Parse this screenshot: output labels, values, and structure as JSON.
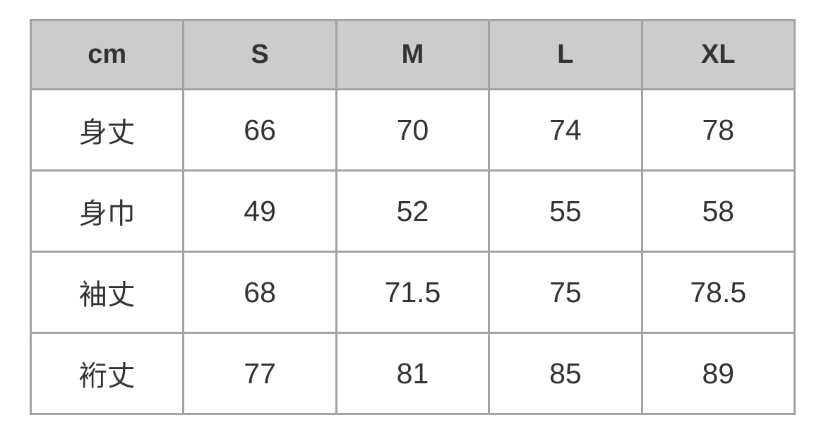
{
  "table": {
    "headers": [
      "cm",
      "S",
      "M",
      "L",
      "XL"
    ],
    "rows": [
      {
        "label": "身丈",
        "values": [
          "66",
          "70",
          "74",
          "78"
        ]
      },
      {
        "label": "身巾",
        "values": [
          "49",
          "52",
          "55",
          "58"
        ]
      },
      {
        "label": "袖丈",
        "values": [
          "68",
          "71.5",
          "75",
          "78.5"
        ]
      },
      {
        "label": "裄丈",
        "values": [
          "77",
          "81",
          "85",
          "89"
        ]
      }
    ],
    "colors": {
      "header_bg": "#cccccc",
      "border": "#a3a3a3",
      "text": "#333333"
    }
  }
}
